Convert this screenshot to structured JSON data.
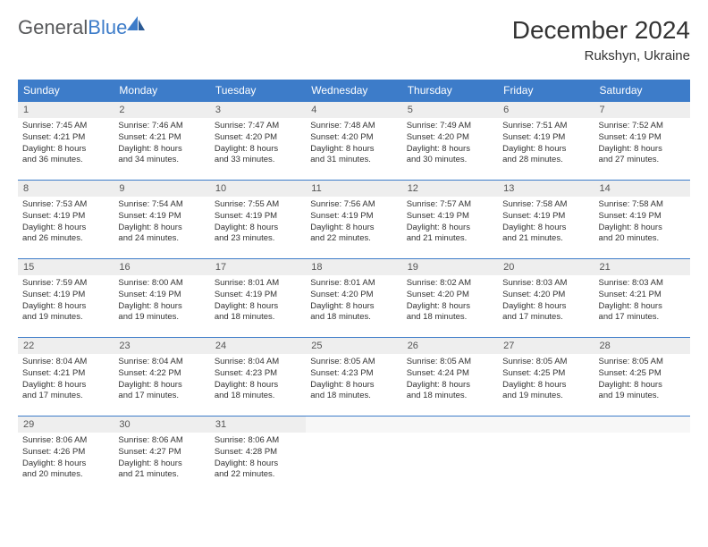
{
  "logo": {
    "text_general": "General",
    "text_blue": "Blue"
  },
  "title": "December 2024",
  "location": "Rukshyn, Ukraine",
  "colors": {
    "header_blue": "#3d7cc9",
    "day_num_bg": "#eeeeee",
    "text": "#333333",
    "logo_gray": "#58595b"
  },
  "dayHeaders": [
    "Sunday",
    "Monday",
    "Tuesday",
    "Wednesday",
    "Thursday",
    "Friday",
    "Saturday"
  ],
  "weeks": [
    [
      {
        "n": "1",
        "sr": "Sunrise: 7:45 AM",
        "ss": "Sunset: 4:21 PM",
        "d1": "Daylight: 8 hours",
        "d2": "and 36 minutes."
      },
      {
        "n": "2",
        "sr": "Sunrise: 7:46 AM",
        "ss": "Sunset: 4:21 PM",
        "d1": "Daylight: 8 hours",
        "d2": "and 34 minutes."
      },
      {
        "n": "3",
        "sr": "Sunrise: 7:47 AM",
        "ss": "Sunset: 4:20 PM",
        "d1": "Daylight: 8 hours",
        "d2": "and 33 minutes."
      },
      {
        "n": "4",
        "sr": "Sunrise: 7:48 AM",
        "ss": "Sunset: 4:20 PM",
        "d1": "Daylight: 8 hours",
        "d2": "and 31 minutes."
      },
      {
        "n": "5",
        "sr": "Sunrise: 7:49 AM",
        "ss": "Sunset: 4:20 PM",
        "d1": "Daylight: 8 hours",
        "d2": "and 30 minutes."
      },
      {
        "n": "6",
        "sr": "Sunrise: 7:51 AM",
        "ss": "Sunset: 4:19 PM",
        "d1": "Daylight: 8 hours",
        "d2": "and 28 minutes."
      },
      {
        "n": "7",
        "sr": "Sunrise: 7:52 AM",
        "ss": "Sunset: 4:19 PM",
        "d1": "Daylight: 8 hours",
        "d2": "and 27 minutes."
      }
    ],
    [
      {
        "n": "8",
        "sr": "Sunrise: 7:53 AM",
        "ss": "Sunset: 4:19 PM",
        "d1": "Daylight: 8 hours",
        "d2": "and 26 minutes."
      },
      {
        "n": "9",
        "sr": "Sunrise: 7:54 AM",
        "ss": "Sunset: 4:19 PM",
        "d1": "Daylight: 8 hours",
        "d2": "and 24 minutes."
      },
      {
        "n": "10",
        "sr": "Sunrise: 7:55 AM",
        "ss": "Sunset: 4:19 PM",
        "d1": "Daylight: 8 hours",
        "d2": "and 23 minutes."
      },
      {
        "n": "11",
        "sr": "Sunrise: 7:56 AM",
        "ss": "Sunset: 4:19 PM",
        "d1": "Daylight: 8 hours",
        "d2": "and 22 minutes."
      },
      {
        "n": "12",
        "sr": "Sunrise: 7:57 AM",
        "ss": "Sunset: 4:19 PM",
        "d1": "Daylight: 8 hours",
        "d2": "and 21 minutes."
      },
      {
        "n": "13",
        "sr": "Sunrise: 7:58 AM",
        "ss": "Sunset: 4:19 PM",
        "d1": "Daylight: 8 hours",
        "d2": "and 21 minutes."
      },
      {
        "n": "14",
        "sr": "Sunrise: 7:58 AM",
        "ss": "Sunset: 4:19 PM",
        "d1": "Daylight: 8 hours",
        "d2": "and 20 minutes."
      }
    ],
    [
      {
        "n": "15",
        "sr": "Sunrise: 7:59 AM",
        "ss": "Sunset: 4:19 PM",
        "d1": "Daylight: 8 hours",
        "d2": "and 19 minutes."
      },
      {
        "n": "16",
        "sr": "Sunrise: 8:00 AM",
        "ss": "Sunset: 4:19 PM",
        "d1": "Daylight: 8 hours",
        "d2": "and 19 minutes."
      },
      {
        "n": "17",
        "sr": "Sunrise: 8:01 AM",
        "ss": "Sunset: 4:19 PM",
        "d1": "Daylight: 8 hours",
        "d2": "and 18 minutes."
      },
      {
        "n": "18",
        "sr": "Sunrise: 8:01 AM",
        "ss": "Sunset: 4:20 PM",
        "d1": "Daylight: 8 hours",
        "d2": "and 18 minutes."
      },
      {
        "n": "19",
        "sr": "Sunrise: 8:02 AM",
        "ss": "Sunset: 4:20 PM",
        "d1": "Daylight: 8 hours",
        "d2": "and 18 minutes."
      },
      {
        "n": "20",
        "sr": "Sunrise: 8:03 AM",
        "ss": "Sunset: 4:20 PM",
        "d1": "Daylight: 8 hours",
        "d2": "and 17 minutes."
      },
      {
        "n": "21",
        "sr": "Sunrise: 8:03 AM",
        "ss": "Sunset: 4:21 PM",
        "d1": "Daylight: 8 hours",
        "d2": "and 17 minutes."
      }
    ],
    [
      {
        "n": "22",
        "sr": "Sunrise: 8:04 AM",
        "ss": "Sunset: 4:21 PM",
        "d1": "Daylight: 8 hours",
        "d2": "and 17 minutes."
      },
      {
        "n": "23",
        "sr": "Sunrise: 8:04 AM",
        "ss": "Sunset: 4:22 PM",
        "d1": "Daylight: 8 hours",
        "d2": "and 17 minutes."
      },
      {
        "n": "24",
        "sr": "Sunrise: 8:04 AM",
        "ss": "Sunset: 4:23 PM",
        "d1": "Daylight: 8 hours",
        "d2": "and 18 minutes."
      },
      {
        "n": "25",
        "sr": "Sunrise: 8:05 AM",
        "ss": "Sunset: 4:23 PM",
        "d1": "Daylight: 8 hours",
        "d2": "and 18 minutes."
      },
      {
        "n": "26",
        "sr": "Sunrise: 8:05 AM",
        "ss": "Sunset: 4:24 PM",
        "d1": "Daylight: 8 hours",
        "d2": "and 18 minutes."
      },
      {
        "n": "27",
        "sr": "Sunrise: 8:05 AM",
        "ss": "Sunset: 4:25 PM",
        "d1": "Daylight: 8 hours",
        "d2": "and 19 minutes."
      },
      {
        "n": "28",
        "sr": "Sunrise: 8:05 AM",
        "ss": "Sunset: 4:25 PM",
        "d1": "Daylight: 8 hours",
        "d2": "and 19 minutes."
      }
    ],
    [
      {
        "n": "29",
        "sr": "Sunrise: 8:06 AM",
        "ss": "Sunset: 4:26 PM",
        "d1": "Daylight: 8 hours",
        "d2": "and 20 minutes."
      },
      {
        "n": "30",
        "sr": "Sunrise: 8:06 AM",
        "ss": "Sunset: 4:27 PM",
        "d1": "Daylight: 8 hours",
        "d2": "and 21 minutes."
      },
      {
        "n": "31",
        "sr": "Sunrise: 8:06 AM",
        "ss": "Sunset: 4:28 PM",
        "d1": "Daylight: 8 hours",
        "d2": "and 22 minutes."
      },
      null,
      null,
      null,
      null
    ]
  ]
}
